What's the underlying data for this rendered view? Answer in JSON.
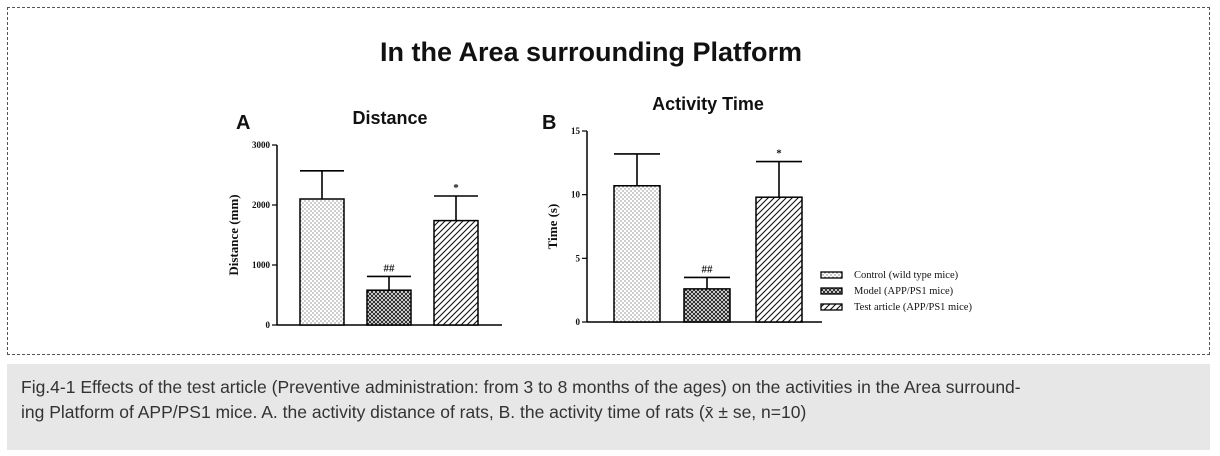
{
  "figure": {
    "title": "In the Area surrounding Platform"
  },
  "panels": {
    "a": {
      "letter": "A",
      "title": "Distance"
    },
    "b": {
      "letter": "B",
      "title": "Activity Time"
    }
  },
  "chart_data": [
    {
      "type": "bar",
      "title": "Distance",
      "ylabel": "Distance (mm)",
      "xlabel": "",
      "ylim": [
        0,
        3000
      ],
      "yticks": [
        0,
        1000,
        2000,
        3000
      ],
      "categories": [
        "Control (wild type mice)",
        "Model (APP/PS1 mice)",
        "Test article (APP/PS1 mice)"
      ],
      "values": [
        2100,
        580,
        1740
      ],
      "errors": [
        470,
        230,
        410
      ],
      "annotations": [
        "",
        "##",
        "*"
      ]
    },
    {
      "type": "bar",
      "title": "Activity Time",
      "ylabel": "Time (s)",
      "xlabel": "",
      "ylim": [
        0,
        15
      ],
      "yticks": [
        0,
        5,
        10,
        15
      ],
      "categories": [
        "Control (wild type mice)",
        "Model (APP/PS1 mice)",
        "Test article (APP/PS1 mice)"
      ],
      "values": [
        10.7,
        2.6,
        9.8
      ],
      "errors": [
        2.5,
        0.9,
        2.8
      ],
      "annotations": [
        "",
        "##",
        "*"
      ]
    }
  ],
  "legend": {
    "placement": "right",
    "items": [
      "Control (wild type mice)",
      "Model (APP/PS1 mice)",
      "Test article (APP/PS1 mice)"
    ]
  },
  "caption": {
    "line1": "Fig.4-1 Effects of the test article (Preventive administration: from 3 to 8 months of the ages) on the activities in the Area surround-",
    "line2": "ing Platform of APP/PS1 mice. A. the activity distance of rats, B. the activity time of rats (x̄ ± se, n=10)"
  }
}
